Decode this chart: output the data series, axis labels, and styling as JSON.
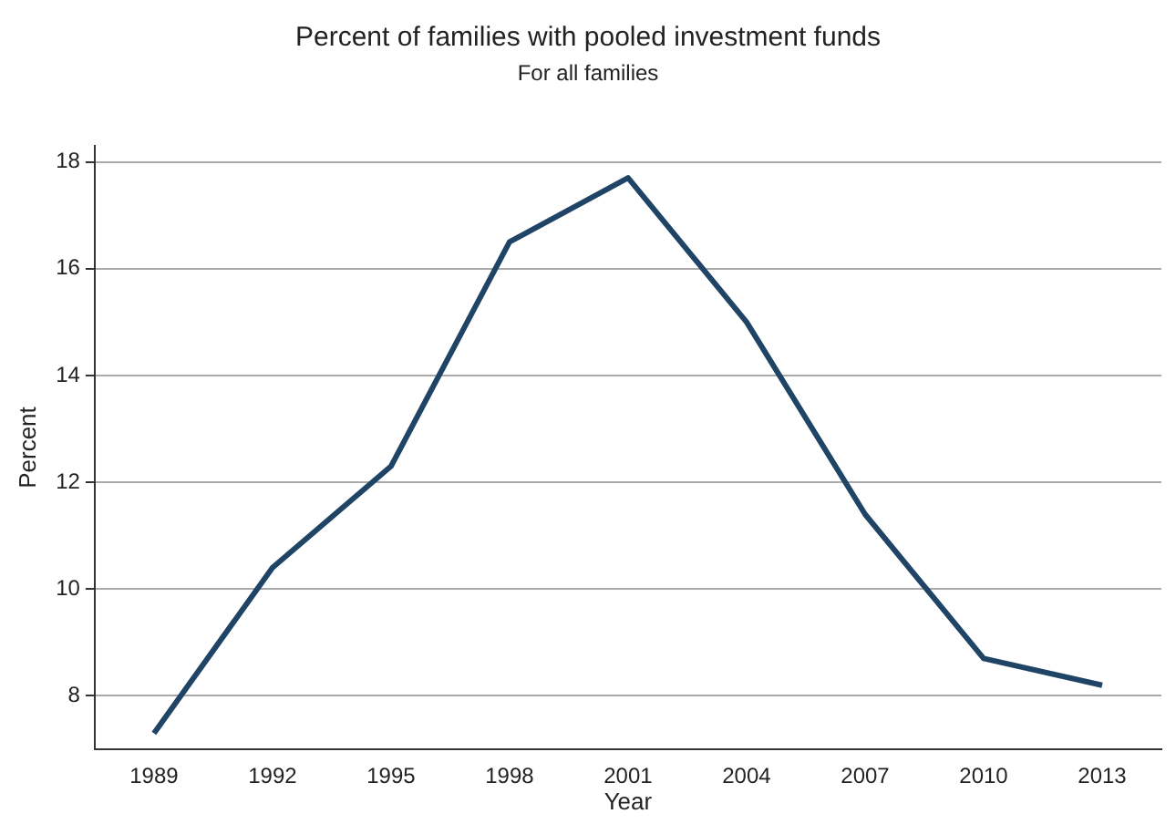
{
  "chart_data": {
    "type": "line",
    "title": "Percent of families with pooled investment funds",
    "subtitle": "For all families",
    "xlabel": "Year",
    "ylabel": "Percent",
    "categories": [
      "1989",
      "1992",
      "1995",
      "1998",
      "2001",
      "2004",
      "2007",
      "2010",
      "2013"
    ],
    "series": [
      {
        "color": "#1f4466",
        "values": [
          7.3,
          10.4,
          12.3,
          16.5,
          17.7,
          15.0,
          11.4,
          8.7,
          8.2
        ]
      }
    ],
    "ylim": [
      7,
      18.3
    ],
    "yticks": [
      8,
      10,
      12,
      14,
      16,
      18
    ],
    "grid": "y",
    "legend": false,
    "marker": "none",
    "line_style": "solid"
  }
}
